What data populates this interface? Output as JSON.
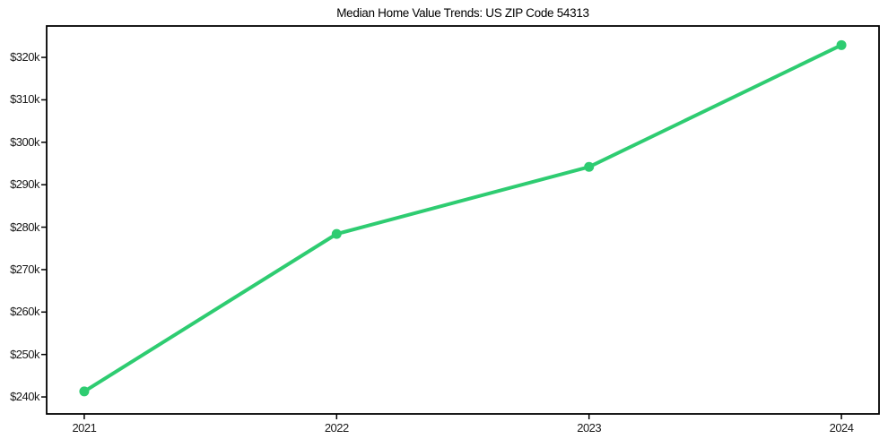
{
  "chart_data": {
    "type": "line",
    "title": "Median Home Value Trends: US ZIP Code 54313",
    "x": [
      2021,
      2022,
      2023,
      2024
    ],
    "x_tick_labels": [
      "2021",
      "2022",
      "2023",
      "2024"
    ],
    "series": [
      {
        "name": "Median Home Value",
        "values": [
          241300,
          278400,
          294200,
          322900
        ],
        "color": "#2ecc71",
        "marker": "circle"
      }
    ],
    "y_ticks": [
      240000,
      250000,
      260000,
      270000,
      280000,
      290000,
      300000,
      310000,
      320000
    ],
    "y_tick_labels": [
      "$240k",
      "$250k",
      "$260k",
      "$270k",
      "$280k",
      "$290k",
      "$300k",
      "$310k",
      "$320k"
    ],
    "xlabel": "",
    "ylabel": "",
    "xlim": [
      2020.851,
      2024.149
    ],
    "ylim": [
      236000,
      327400
    ],
    "grid": false,
    "legend": false,
    "axis_color": "#000000",
    "text_color": "#1a1a1a",
    "background": "#ffffff"
  }
}
